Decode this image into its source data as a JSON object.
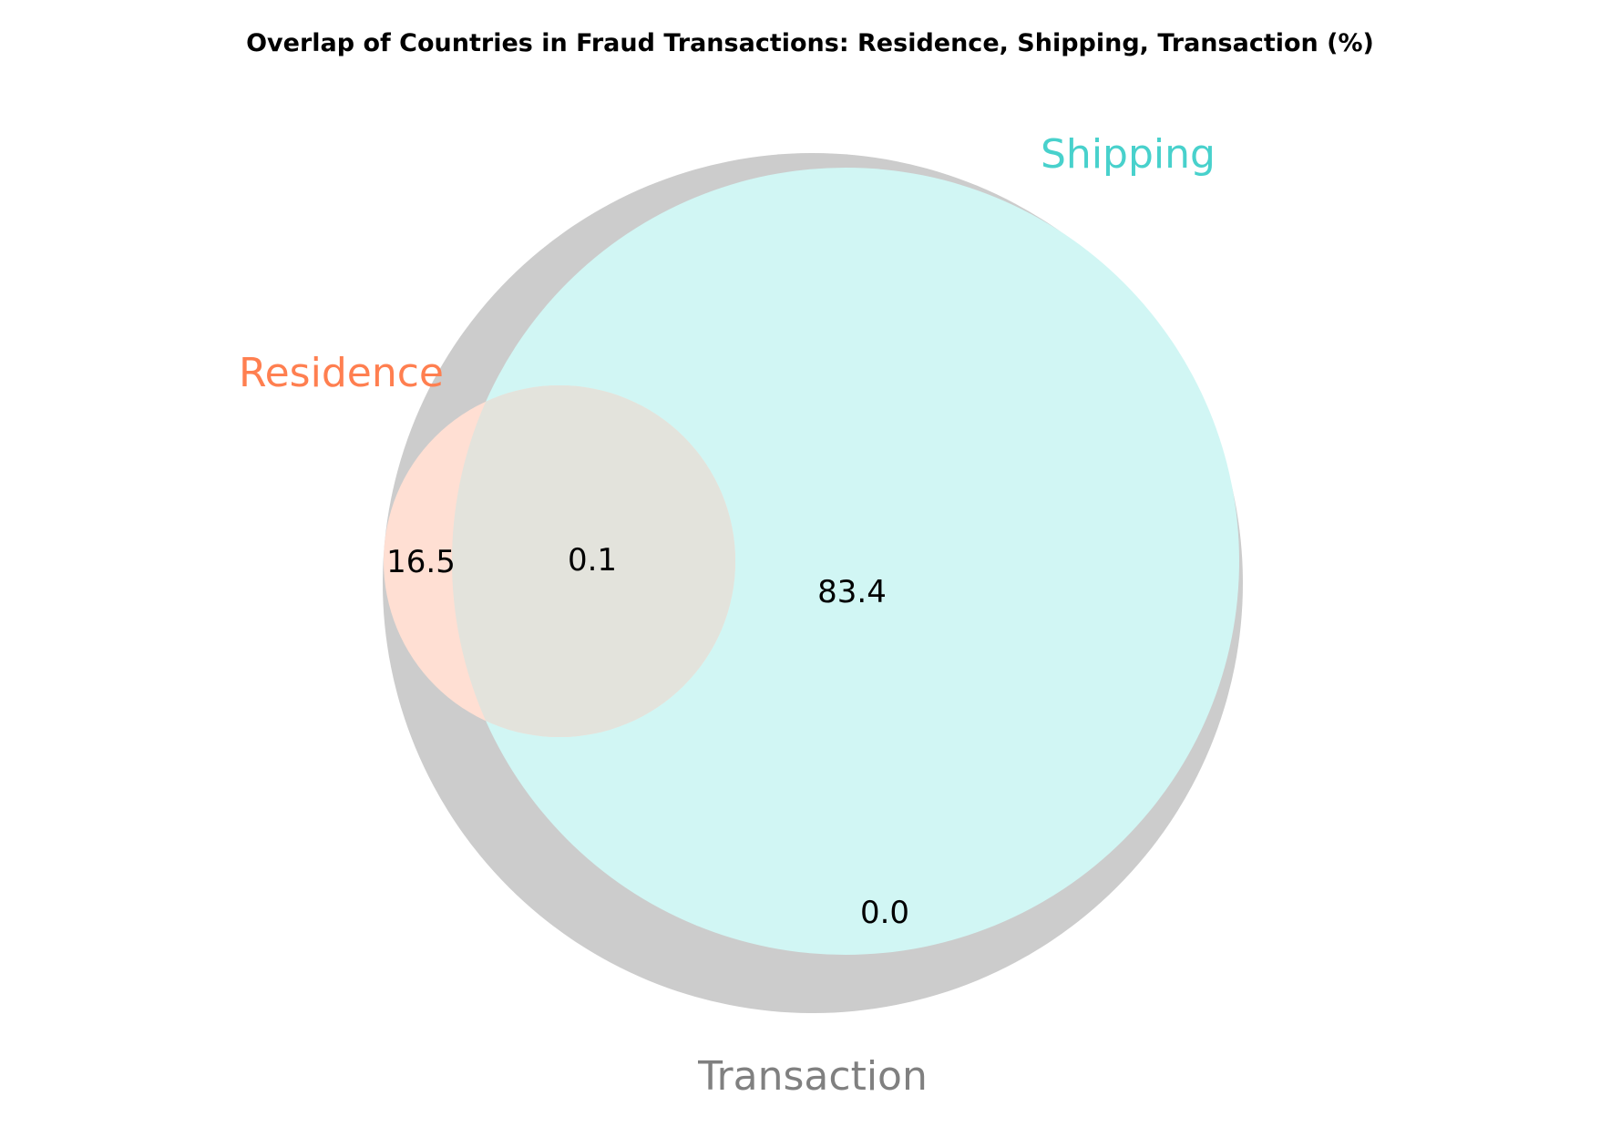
{
  "chart_data": {
    "type": "venn",
    "title": "Overlap of Countries in Fraud Transactions: Residence, Shipping, Transaction (%)",
    "sets": [
      {
        "name": "Residence",
        "color": "#ff7f50",
        "fill": "#ffdfd3"
      },
      {
        "name": "Shipping",
        "color": "#48d1cc",
        "fill": "#d1f6f4"
      },
      {
        "name": "Transaction",
        "color": "#808080",
        "fill": "#cccccc"
      }
    ],
    "regions": [
      {
        "sets": [
          "Residence"
        ],
        "label": "16.5",
        "value": 16.5
      },
      {
        "sets": [
          "Residence",
          "Shipping"
        ],
        "label": "0.1",
        "value": 0.1
      },
      {
        "sets": [
          "Shipping"
        ],
        "label": "83.4",
        "value": 83.4
      },
      {
        "sets": [
          "Shipping",
          "Transaction"
        ],
        "label": "0.0",
        "value": 0.0
      }
    ],
    "overlap_fill": "#e3e3dc"
  }
}
